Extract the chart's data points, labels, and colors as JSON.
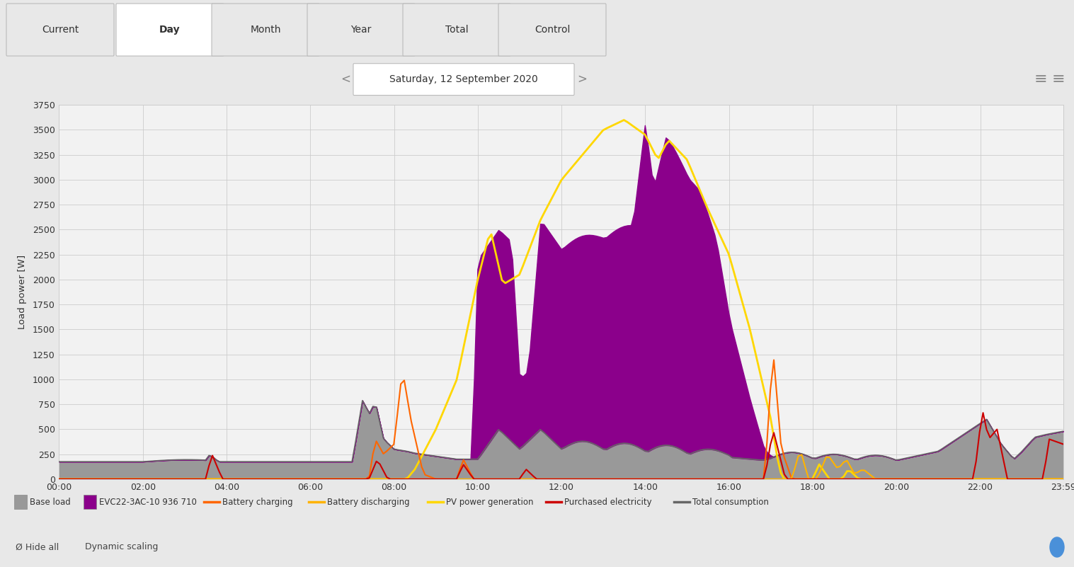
{
  "title_tab": "Day",
  "date_label": "Saturday, 12 September 2020",
  "ylabel": "Load power [W]",
  "ylim": [
    0,
    3750
  ],
  "yticks": [
    0,
    250,
    500,
    750,
    1000,
    1250,
    1500,
    1750,
    2000,
    2250,
    2500,
    2750,
    3000,
    3250,
    3500,
    3750
  ],
  "xtick_labels": [
    "00:00",
    "02:00",
    "04:00",
    "06:00",
    "08:00",
    "10:00",
    "12:00",
    "14:00",
    "16:00",
    "18:00",
    "20:00",
    "22:00",
    "23:59"
  ],
  "bg_color": "#e8e8e8",
  "plot_bg_color": "#f2f2f2",
  "grid_color": "#cccccc",
  "tabs": [
    "Current",
    "Day",
    "Month",
    "Year",
    "Total",
    "Control"
  ],
  "active_tab": "Day",
  "legend": [
    {
      "label": "Base load",
      "color": "#999999",
      "type": "fill"
    },
    {
      "label": "EVC22-3AC-10 936 710",
      "color": "#8B008B",
      "type": "fill"
    },
    {
      "label": "Battery charging",
      "color": "#FF6600",
      "type": "line"
    },
    {
      "label": "Battery discharging",
      "color": "#FFB300",
      "type": "line"
    },
    {
      "label": "PV power generation",
      "color": "#FFD700",
      "type": "line"
    },
    {
      "label": "Purchased electricity",
      "color": "#CC0000",
      "type": "line"
    },
    {
      "label": "Total consumption",
      "color": "#666666",
      "type": "line"
    }
  ]
}
